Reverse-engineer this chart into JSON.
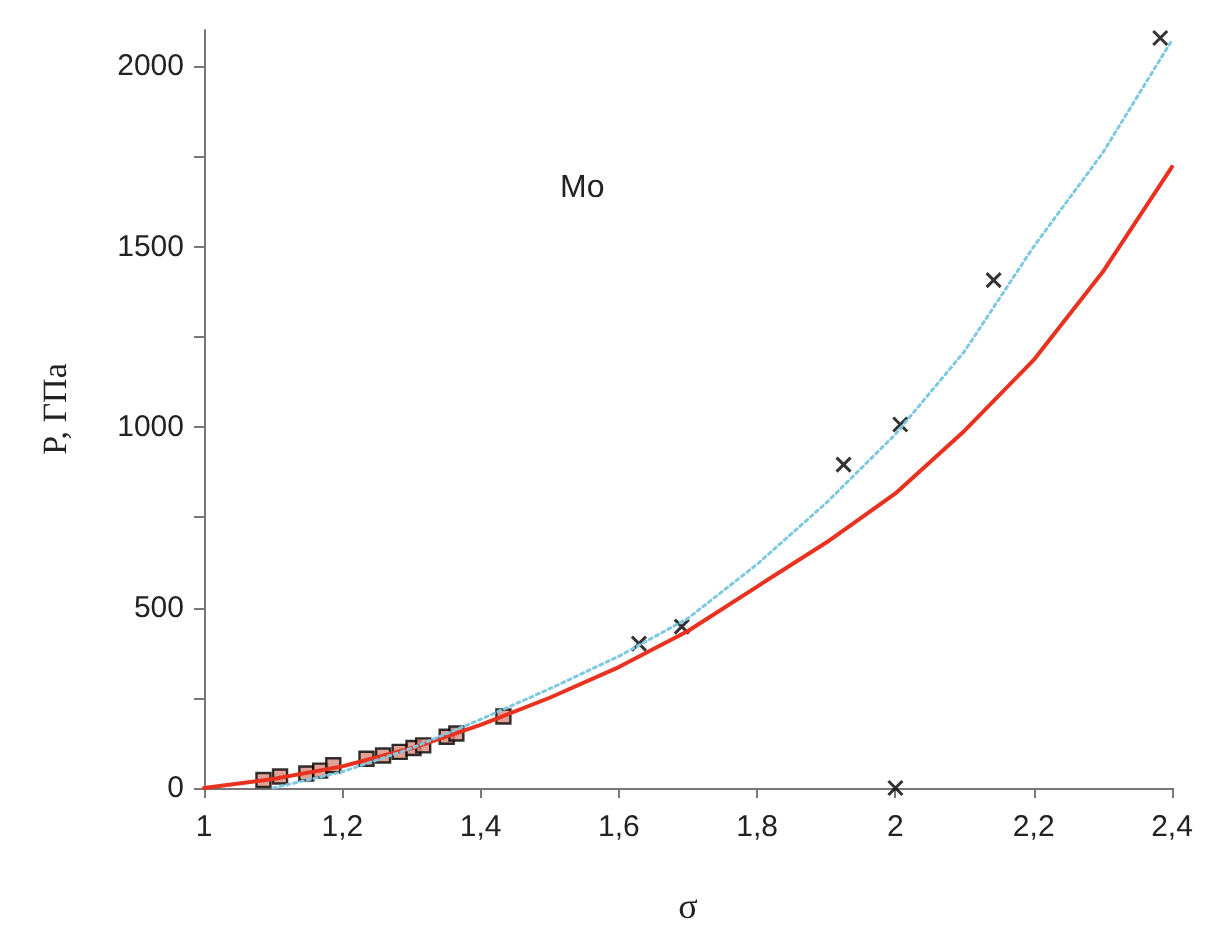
{
  "chart_data": {
    "type": "line",
    "xlabel": "σ",
    "ylabel": "P, ГПа",
    "annotations": [
      "Mo"
    ],
    "xlim": [
      1,
      2.4
    ],
    "xticks": [
      1,
      {
        "value": 1.2,
        "label": "1,2"
      },
      {
        "value": 1.4,
        "label": "1,4"
      },
      {
        "value": 1.6,
        "label": "1,6"
      },
      {
        "value": 1.8,
        "label": "1,8"
      },
      2,
      {
        "value": 2.2,
        "label": "2,2"
      },
      {
        "value": 2.4,
        "label": "2,4"
      }
    ],
    "ylim": [
      0,
      2100
    ],
    "yticks": [
      0,
      {
        "value": 250,
        "label": null
      },
      500,
      {
        "value": 750,
        "label": null
      },
      1000,
      {
        "value": 1250,
        "label": null
      },
      1500,
      {
        "value": 1750,
        "label": null
      },
      2000
    ],
    "grid": false,
    "series": [
      {
        "color": "#e8311f",
        "line_style": "solid",
        "marker": "none",
        "x": [
          1,
          1.1,
          1.2,
          1.3,
          1.4,
          1.5,
          1.6,
          1.7,
          1.8,
          1.9,
          2,
          2.1,
          2.2,
          2.3,
          2.4
        ],
        "values": [
          0,
          25,
          60,
          110,
          175,
          250,
          335,
          435,
          558,
          680,
          816,
          990,
          1186,
          1430,
          1721
        ]
      },
      {
        "color": "#7ec8e0",
        "line_style": "dotted",
        "marker": "none",
        "x": [
          1.1,
          1.2,
          1.3,
          1.4,
          1.5,
          1.6,
          1.7,
          1.8,
          1.9,
          2,
          2.1,
          2.2,
          2.3,
          2.4
        ],
        "values": [
          0,
          45,
          110,
          190,
          275,
          365,
          470,
          620,
          790,
          980,
          1210,
          1500,
          1760,
          2072
        ]
      },
      {
        "type": "scatter",
        "color": "#000000",
        "marker": "square",
        "x": [
          1.086,
          1.11,
          1.148,
          1.168,
          1.187,
          1.235,
          1.259,
          1.283,
          1.303,
          1.317,
          1.351,
          1.365,
          1.433
        ],
        "values": [
          22,
          32,
          40,
          48,
          63,
          81,
          90,
          100,
          111,
          118,
          142,
          151,
          198
        ]
      },
      {
        "type": "scatter",
        "color": "#000000",
        "marker": "cross",
        "x": [
          1.629,
          1.691,
          1.925,
          2.007,
          2.142,
          2.383,
          2
        ],
        "values": [
          400,
          447,
          896,
          1007,
          1407,
          2078,
          0
        ]
      }
    ]
  }
}
